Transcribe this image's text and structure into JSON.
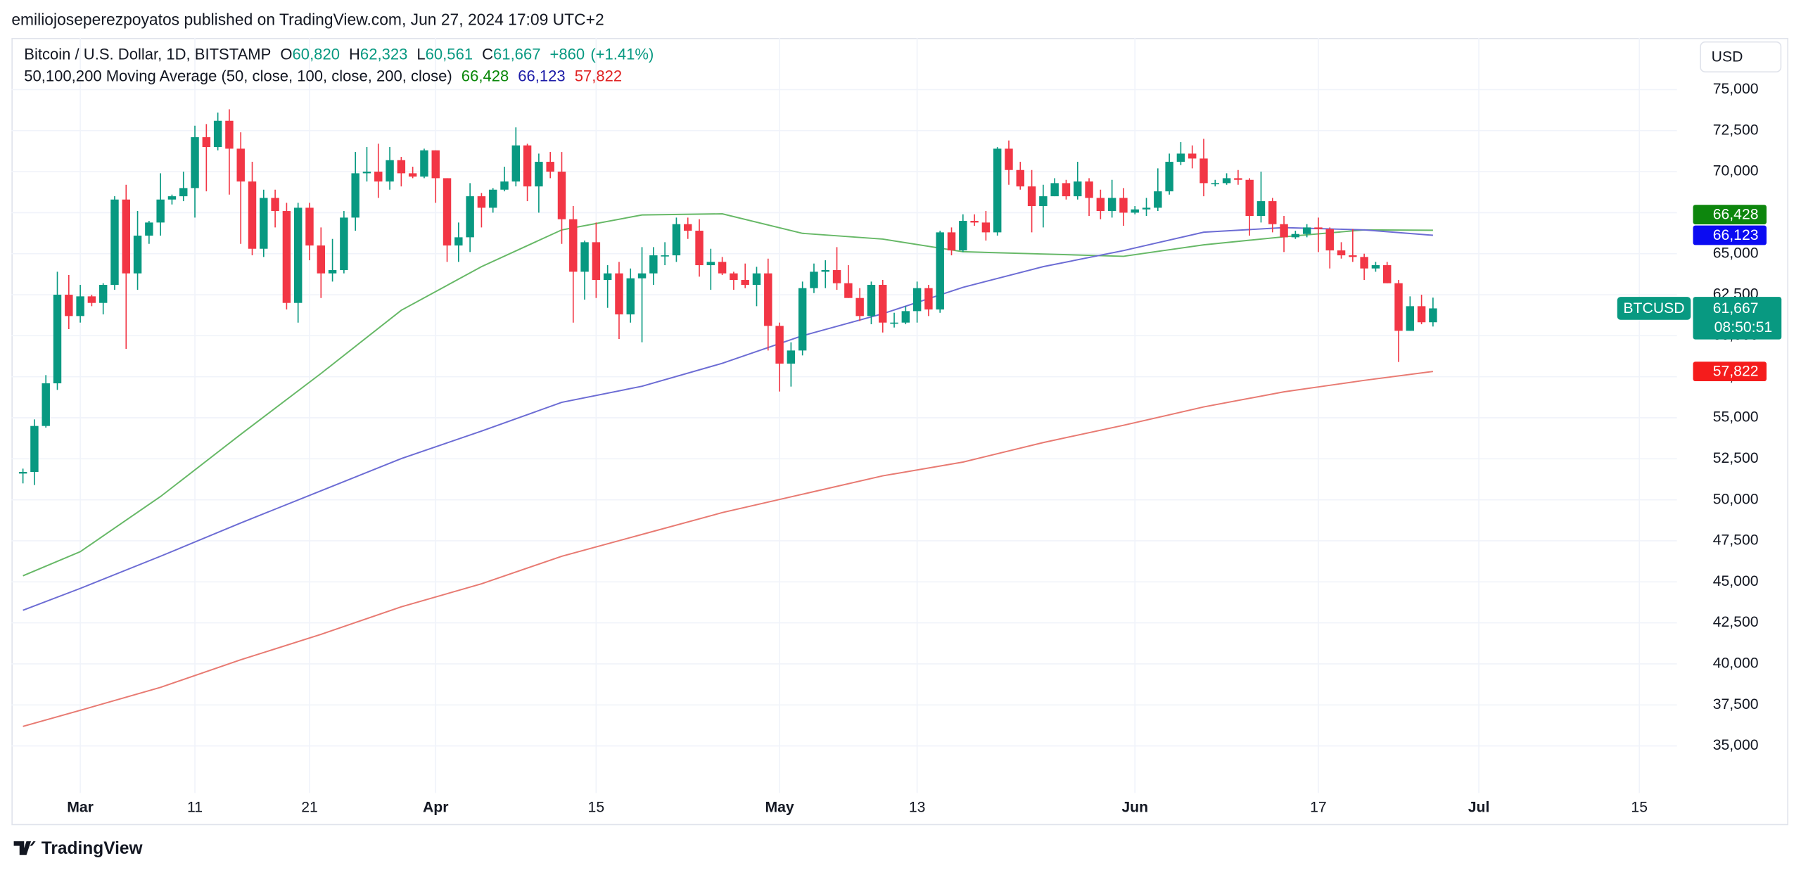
{
  "chart_data": {
    "type": "candlestick",
    "attribution": "emiliojoseperezpoyatos published on TradingView.com, Jun 27, 2024 17:09 UTC+2",
    "title": "Bitcoin / U.S. Dollar, 1D, BITSTAMP",
    "ohlc_legend": [
      {
        "key": "O",
        "value": 60820,
        "label": "60,820"
      },
      {
        "key": "H",
        "value": 62323,
        "label": "62,323"
      },
      {
        "key": "L",
        "value": 60561,
        "label": "60,561"
      },
      {
        "key": "C",
        "value": 61667,
        "label": "61,667"
      }
    ],
    "change": {
      "value": 860,
      "label": "+860"
    },
    "change_percent": {
      "value": 1.41,
      "label": "(+1.41%)"
    },
    "currency": "USD",
    "symbol": "BTCUSD",
    "last_price": {
      "value": 61667,
      "label": "61,667"
    },
    "countdown": "08:50:51",
    "brand": "TradingView",
    "up_color": "#089981",
    "down_color": "#f23645",
    "grid": true,
    "xlim": [
      "2024-02-24",
      "2024-07-28"
    ],
    "xticks": [
      {
        "value": "2024-03-01",
        "label": "Mar"
      },
      {
        "value": "2024-03-11",
        "label": "11"
      },
      {
        "value": "2024-03-21",
        "label": "21"
      },
      {
        "value": "2024-04-01",
        "label": "Apr"
      },
      {
        "value": "2024-04-15",
        "label": "15"
      },
      {
        "value": "2024-05-01",
        "label": "May"
      },
      {
        "value": "2024-05-13",
        "label": "13"
      },
      {
        "value": "2024-06-01",
        "label": "Jun"
      },
      {
        "value": "2024-06-17",
        "label": "17"
      },
      {
        "value": "2024-07-01",
        "label": "Jul"
      },
      {
        "value": "2024-07-15",
        "label": "15"
      }
    ],
    "ylim": [
      30240,
      78150
    ],
    "yticks": [
      {
        "value": 35000,
        "label": "35,000"
      },
      {
        "value": 37500,
        "label": "37,500"
      },
      {
        "value": 40000,
        "label": "40,000"
      },
      {
        "value": 42500,
        "label": "42,500"
      },
      {
        "value": 45000,
        "label": "45,000"
      },
      {
        "value": 47500,
        "label": "47,500"
      },
      {
        "value": 50000,
        "label": "50,000"
      },
      {
        "value": 52500,
        "label": "52,500"
      },
      {
        "value": 55000,
        "label": "55,000"
      },
      {
        "value": 57500,
        "label": "57,500"
      },
      {
        "value": 60000,
        "label": "60,000"
      },
      {
        "value": 62500,
        "label": "62,500"
      },
      {
        "value": 65000,
        "label": "65,000"
      },
      {
        "value": 67500,
        "label": "67,500"
      },
      {
        "value": 70000,
        "label": "70,000"
      },
      {
        "value": 72500,
        "label": "72,500"
      },
      {
        "value": 75000,
        "label": "75,000"
      }
    ],
    "x": [
      "2024-02-25",
      "2024-02-26",
      "2024-02-27",
      "2024-02-28",
      "2024-02-29",
      "2024-03-01",
      "2024-03-02",
      "2024-03-03",
      "2024-03-04",
      "2024-03-05",
      "2024-03-06",
      "2024-03-07",
      "2024-03-08",
      "2024-03-09",
      "2024-03-10",
      "2024-03-11",
      "2024-03-12",
      "2024-03-13",
      "2024-03-14",
      "2024-03-15",
      "2024-03-16",
      "2024-03-17",
      "2024-03-18",
      "2024-03-19",
      "2024-03-20",
      "2024-03-21",
      "2024-03-22",
      "2024-03-23",
      "2024-03-24",
      "2024-03-25",
      "2024-03-26",
      "2024-03-27",
      "2024-03-28",
      "2024-03-29",
      "2024-03-30",
      "2024-03-31",
      "2024-04-01",
      "2024-04-02",
      "2024-04-03",
      "2024-04-04",
      "2024-04-05",
      "2024-04-06",
      "2024-04-07",
      "2024-04-08",
      "2024-04-09",
      "2024-04-10",
      "2024-04-11",
      "2024-04-12",
      "2024-04-13",
      "2024-04-14",
      "2024-04-15",
      "2024-04-16",
      "2024-04-17",
      "2024-04-18",
      "2024-04-19",
      "2024-04-20",
      "2024-04-21",
      "2024-04-22",
      "2024-04-23",
      "2024-04-24",
      "2024-04-25",
      "2024-04-26",
      "2024-04-27",
      "2024-04-28",
      "2024-04-29",
      "2024-04-30",
      "2024-05-01",
      "2024-05-02",
      "2024-05-03",
      "2024-05-04",
      "2024-05-05",
      "2024-05-06",
      "2024-05-07",
      "2024-05-08",
      "2024-05-09",
      "2024-05-10",
      "2024-05-11",
      "2024-05-12",
      "2024-05-13",
      "2024-05-14",
      "2024-05-15",
      "2024-05-16",
      "2024-05-17",
      "2024-05-18",
      "2024-05-19",
      "2024-05-20",
      "2024-05-21",
      "2024-05-22",
      "2024-05-23",
      "2024-05-24",
      "2024-05-25",
      "2024-05-26",
      "2024-05-27",
      "2024-05-28",
      "2024-05-29",
      "2024-05-30",
      "2024-05-31",
      "2024-06-01",
      "2024-06-02",
      "2024-06-03",
      "2024-06-04",
      "2024-06-05",
      "2024-06-06",
      "2024-06-07",
      "2024-06-08",
      "2024-06-09",
      "2024-06-10",
      "2024-06-11",
      "2024-06-12",
      "2024-06-13",
      "2024-06-14",
      "2024-06-15",
      "2024-06-16",
      "2024-06-17",
      "2024-06-18",
      "2024-06-19",
      "2024-06-20",
      "2024-06-21",
      "2024-06-22",
      "2024-06-23",
      "2024-06-24",
      "2024-06-25",
      "2024-06-26",
      "2024-06-27"
    ],
    "open": [
      51600,
      51700,
      54500,
      57100,
      62500,
      61200,
      62400,
      62000,
      63100,
      68300,
      63800,
      66100,
      66900,
      68300,
      68500,
      69000,
      72100,
      71500,
      73100,
      71400,
      69400,
      65300,
      68400,
      67600,
      62000,
      67800,
      65500,
      63800,
      64000,
      67200,
      69900,
      70000,
      69400,
      70700,
      69900,
      69700,
      71300,
      69600,
      65500,
      66000,
      68500,
      67800,
      68900,
      69400,
      71600,
      69100,
      70600,
      70000,
      67100,
      63900,
      65700,
      63400,
      63800,
      61300,
      63500,
      63800,
      64900,
      64900,
      66800,
      66400,
      64300,
      64500,
      63800,
      63400,
      63100,
      63800,
      60600,
      58300,
      59100,
      62900,
      63900,
      64000,
      63200,
      62300,
      61200,
      63100,
      60800,
      60800,
      61500,
      62900,
      61600,
      66300,
      65200,
      67000,
      66900,
      66300,
      71400,
      70100,
      69100,
      67900,
      68500,
      69300,
      68500,
      69400,
      68400,
      67600,
      68400,
      67500,
      67700,
      67800,
      68800,
      70600,
      71100,
      70800,
      69300,
      69300,
      69600,
      69500,
      67300,
      68200,
      66800,
      66000,
      66200,
      66600,
      66500,
      65200,
      64900,
      64800,
      64100,
      64300,
      63200,
      60300,
      61800,
      60820
    ],
    "high": [
      51900,
      54900,
      57600,
      63900,
      63700,
      63100,
      62500,
      63200,
      68500,
      69200,
      67600,
      67000,
      69900,
      68600,
      70000,
      72800,
      72900,
      73600,
      73800,
      72400,
      70600,
      68900,
      68900,
      68100,
      68100,
      68100,
      66600,
      65900,
      67600,
      71200,
      71500,
      71700,
      71500,
      70900,
      70300,
      71400,
      71300,
      69600,
      66900,
      69300,
      68700,
      69000,
      70300,
      72700,
      71700,
      71100,
      71200,
      71200,
      67900,
      65800,
      66900,
      64300,
      64500,
      64100,
      65400,
      65400,
      65700,
      67200,
      67200,
      67100,
      65300,
      64800,
      63900,
      64400,
      64200,
      64700,
      60800,
      59600,
      63300,
      64400,
      64600,
      65400,
      64300,
      62900,
      63300,
      63400,
      61400,
      61800,
      63300,
      63100,
      66400,
      66600,
      67400,
      67400,
      67600,
      71500,
      71900,
      70600,
      70100,
      69200,
      69600,
      69500,
      70600,
      69600,
      68900,
      69500,
      69000,
      67900,
      68400,
      70200,
      71100,
      71800,
      71600,
      72000,
      69500,
      69900,
      70100,
      69600,
      70000,
      68400,
      67300,
      66400,
      66800,
      67200,
      66600,
      65700,
      66500,
      65000,
      64500,
      64500,
      63400,
      62400,
      62500,
      62323
    ],
    "low": [
      51000,
      50900,
      54400,
      56700,
      60400,
      60800,
      61800,
      61300,
      62800,
      59200,
      62800,
      65600,
      66100,
      68000,
      68200,
      67200,
      68800,
      71300,
      68600,
      65600,
      64900,
      64800,
      66600,
      61600,
      60800,
      64600,
      62300,
      63300,
      63800,
      66400,
      69400,
      68400,
      68900,
      69100,
      69600,
      69600,
      68100,
      64500,
      64500,
      65100,
      66600,
      67500,
      68800,
      69100,
      68200,
      67500,
      69600,
      65600,
      60800,
      62200,
      62300,
      61700,
      59800,
      60800,
      59600,
      63100,
      64300,
      64500,
      65900,
      63600,
      62800,
      63700,
      62800,
      62900,
      61800,
      59100,
      56600,
      56900,
      58800,
      62600,
      62900,
      62800,
      62300,
      60900,
      60700,
      60200,
      60500,
      60700,
      60800,
      61200,
      61400,
      64900,
      65100,
      66700,
      65800,
      66100,
      69200,
      68900,
      66300,
      66600,
      68500,
      68300,
      68300,
      67300,
      67100,
      67200,
      66700,
      67400,
      67300,
      67600,
      68600,
      70400,
      70200,
      68500,
      69100,
      69200,
      69200,
      66100,
      66900,
      66300,
      65100,
      65900,
      66000,
      65100,
      64100,
      64700,
      64500,
      63400,
      63900,
      63200,
      58400,
      60300,
      60700,
      60561
    ],
    "close": [
      51700,
      54500,
      57100,
      62500,
      61200,
      62400,
      62000,
      63100,
      68300,
      63800,
      66100,
      66900,
      68300,
      68500,
      69000,
      72100,
      71500,
      73100,
      71400,
      69400,
      65300,
      68400,
      67600,
      62000,
      67800,
      65500,
      63800,
      64000,
      67200,
      69900,
      70000,
      69400,
      70700,
      69900,
      69700,
      71300,
      69600,
      65500,
      66000,
      68500,
      67800,
      68900,
      69400,
      71600,
      69100,
      70600,
      70000,
      67100,
      63900,
      65700,
      63400,
      63800,
      61300,
      63500,
      63800,
      64900,
      64900,
      66800,
      66400,
      64300,
      64500,
      63800,
      63400,
      63100,
      63800,
      60600,
      58300,
      59100,
      62900,
      63900,
      64000,
      63200,
      62300,
      61200,
      63100,
      60800,
      60800,
      61500,
      62900,
      61600,
      66300,
      65200,
      67000,
      66900,
      66300,
      71400,
      70100,
      69100,
      67900,
      68500,
      69300,
      68500,
      69400,
      68400,
      67600,
      68400,
      67500,
      67700,
      67800,
      68800,
      70600,
      71100,
      70800,
      69300,
      69300,
      69600,
      69500,
      67300,
      68200,
      66800,
      66000,
      66200,
      66600,
      66500,
      65200,
      64900,
      64800,
      64100,
      64300,
      63200,
      60300,
      61800,
      60820,
      61667
    ],
    "moving_averages": {
      "label": "50,100,200 Moving Average (50, close, 100, close, 200, close)",
      "series": [
        {
          "color": "#66b866",
          "label_color": "#098709",
          "badge_color": "#0d860d",
          "last": {
            "value": 66428,
            "label": "66,428"
          },
          "x": [
            "2024-02-25",
            "2024-03-01",
            "2024-03-08",
            "2024-03-15",
            "2024-03-22",
            "2024-03-29",
            "2024-04-05",
            "2024-04-12",
            "2024-04-19",
            "2024-04-26",
            "2024-05-03",
            "2024-05-10",
            "2024-05-17",
            "2024-05-24",
            "2024-05-31",
            "2024-06-07",
            "2024-06-14",
            "2024-06-21",
            "2024-06-27"
          ],
          "values": [
            45370,
            46840,
            50200,
            53990,
            57700,
            61550,
            64210,
            66450,
            67360,
            67430,
            66240,
            65890,
            65120,
            64980,
            64840,
            65540,
            66030,
            66450,
            66428
          ]
        },
        {
          "color": "#6c6cd4",
          "label_color": "#1c1ca8",
          "badge_color": "#0b0bf2",
          "last": {
            "value": 66123,
            "label": "66,123"
          },
          "x": [
            "2024-02-25",
            "2024-03-01",
            "2024-03-08",
            "2024-03-15",
            "2024-03-22",
            "2024-03-29",
            "2024-04-05",
            "2024-04-12",
            "2024-04-19",
            "2024-04-26",
            "2024-05-03",
            "2024-05-10",
            "2024-05-17",
            "2024-05-24",
            "2024-05-31",
            "2024-06-07",
            "2024-06-14",
            "2024-06-21",
            "2024-06-27"
          ],
          "values": [
            43270,
            44600,
            46560,
            48590,
            50550,
            52510,
            54190,
            55940,
            56920,
            58320,
            60000,
            61340,
            62950,
            64210,
            65190,
            66310,
            66590,
            66450,
            66123
          ]
        },
        {
          "color": "#e87a72",
          "label_color": "#e02424",
          "badge_color": "#f51c1c",
          "last": {
            "value": 57822,
            "label": "57,822"
          },
          "x": [
            "2024-02-25",
            "2024-03-01",
            "2024-03-08",
            "2024-03-15",
            "2024-03-22",
            "2024-03-29",
            "2024-04-05",
            "2024-04-12",
            "2024-04-19",
            "2024-04-26",
            "2024-05-03",
            "2024-05-10",
            "2024-05-17",
            "2024-05-24",
            "2024-05-31",
            "2024-06-07",
            "2024-06-14",
            "2024-06-21",
            "2024-06-27"
          ],
          "values": [
            36190,
            37170,
            38570,
            40250,
            41800,
            43480,
            44880,
            46560,
            47890,
            49220,
            50340,
            51460,
            52300,
            53490,
            54540,
            55660,
            56580,
            57280,
            57822
          ]
        }
      ]
    }
  }
}
